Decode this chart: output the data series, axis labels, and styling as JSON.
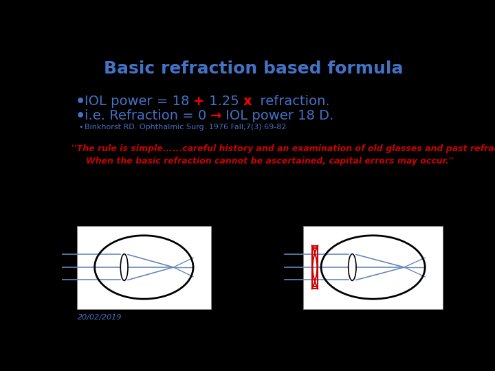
{
  "background_color": "#000000",
  "title": "Basic refraction based formula",
  "title_color": "#4472C4",
  "title_fontsize": 18,
  "bullet1_color": "#4472C4",
  "bullet1_fontsize": 14,
  "bullet2_color": "#4472C4",
  "bullet2_fontsize": 14,
  "bullet3": "Binkhorst RD. Ophthalmic Surg. 1976 Fall;7(3):69-82",
  "bullet3_color": "#4472C4",
  "bullet3_fontsize": 8,
  "quote_line1": "''The rule is simple......careful history and an examination of old glasses and past refraction ......",
  "quote_line2": "When the basic refraction cannot be ascertained, capital errors may occur.''",
  "quote_color": "#CC0000",
  "quote_fontsize": 9,
  "date_text": "20/02/2019",
  "date_color": "#4472C4",
  "date_fontsize": 8,
  "plus_color": "#FF0000",
  "x_color": "#FF0000",
  "arrow_color": "#FF0000",
  "ray_color": "#6688BB",
  "eye_color": "#000000",
  "lens_color": "#CC0000",
  "box_bg": "#FFFFFF"
}
